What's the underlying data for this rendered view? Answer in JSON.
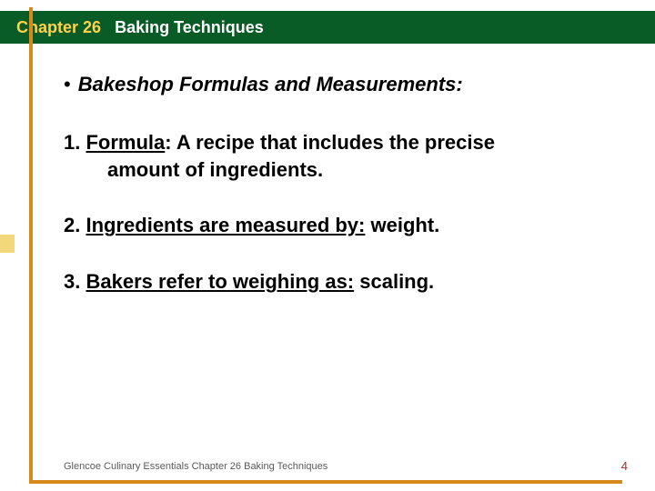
{
  "header": {
    "chapter_label": "Chapter 26",
    "title": "Baking Techniques"
  },
  "section": {
    "bullet": "•",
    "title": "Bakeshop Formulas and Measurements:"
  },
  "items": [
    {
      "num": "1.",
      "term": "Formula",
      "after_term": ":  A recipe that includes the precise",
      "line2": "amount of ingredients."
    },
    {
      "num": "2.",
      "term": "Ingredients are measured by:",
      "after_term": " weight."
    },
    {
      "num": "3.",
      "term": "Bakers refer to weighing as:",
      "after_term": " scaling."
    }
  ],
  "footer": {
    "text": "Glencoe Culinary Essentials Chapter 26 Baking Techniques",
    "page": "4"
  },
  "colors": {
    "header_bg": "#0a5c26",
    "chapter_num": "#ffd24a",
    "orange": "#d68a1a",
    "nub": "#f3d77a",
    "page_num": "#b02a2a"
  }
}
